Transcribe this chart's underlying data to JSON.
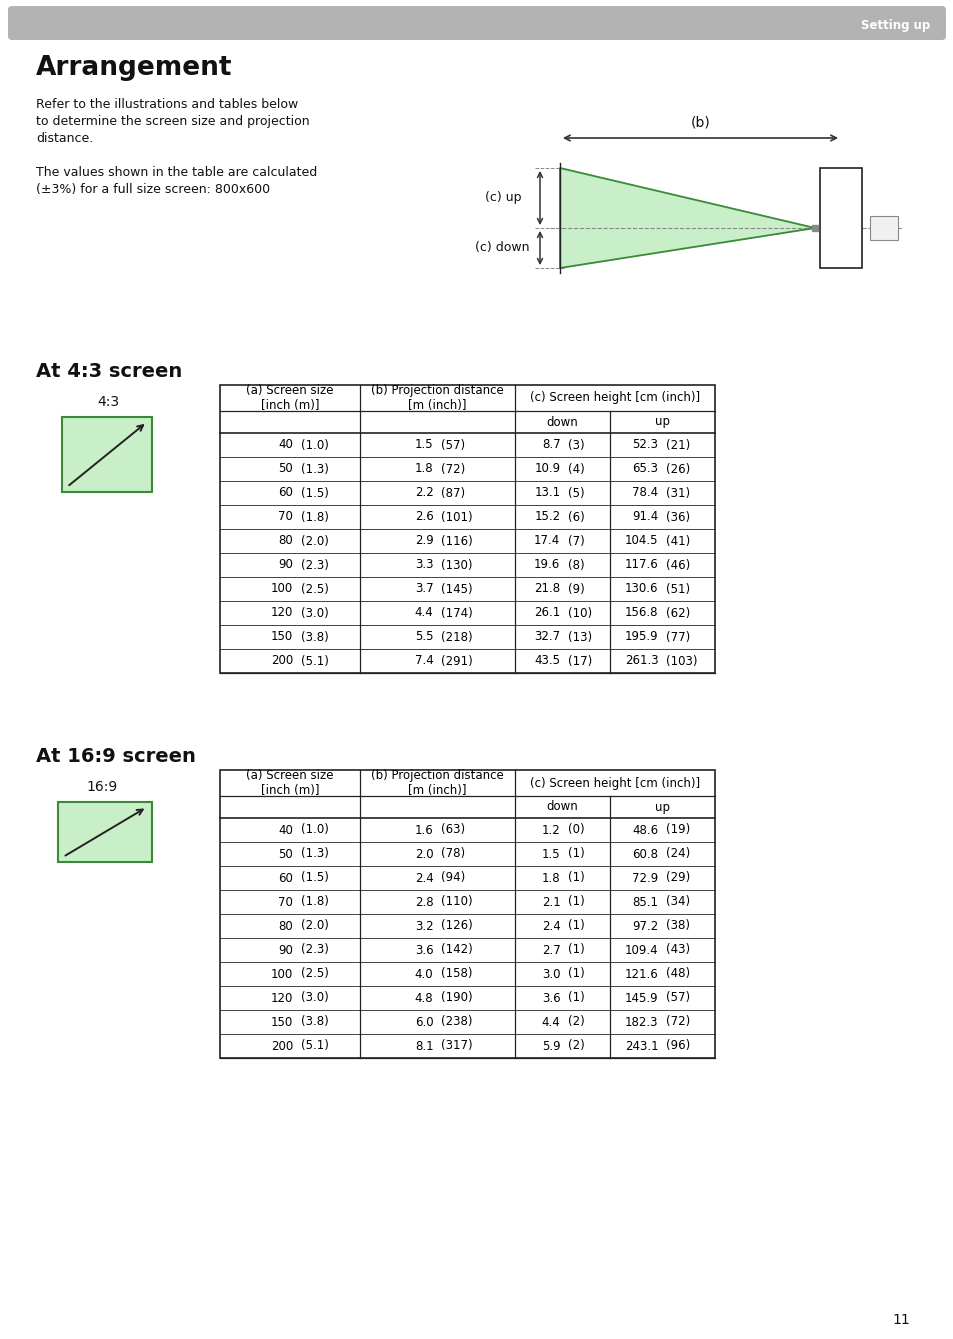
{
  "page_title": "Arrangement",
  "header_text": "Setting up",
  "body_text_line1": "Refer to the illustrations and tables below",
  "body_text_line2": "to determine the screen size and projection",
  "body_text_line3": "distance.",
  "body_text_line4": "The values shown in the table are calculated",
  "body_text_line5": "(±3%) for a full size screen: 800x600",
  "section1_title": "At 4:3 screen",
  "section2_title": "At 16:9 screen",
  "table1_data": [
    [
      "40",
      "(1.0)",
      "1.5",
      "(57)",
      "8.7",
      "(3)",
      "52.3",
      "(21)"
    ],
    [
      "50",
      "(1.3)",
      "1.8",
      "(72)",
      "10.9",
      "(4)",
      "65.3",
      "(26)"
    ],
    [
      "60",
      "(1.5)",
      "2.2",
      "(87)",
      "13.1",
      "(5)",
      "78.4",
      "(31)"
    ],
    [
      "70",
      "(1.8)",
      "2.6",
      "(101)",
      "15.2",
      "(6)",
      "91.4",
      "(36)"
    ],
    [
      "80",
      "(2.0)",
      "2.9",
      "(116)",
      "17.4",
      "(7)",
      "104.5",
      "(41)"
    ],
    [
      "90",
      "(2.3)",
      "3.3",
      "(130)",
      "19.6",
      "(8)",
      "117.6",
      "(46)"
    ],
    [
      "100",
      "(2.5)",
      "3.7",
      "(145)",
      "21.8",
      "(9)",
      "130.6",
      "(51)"
    ],
    [
      "120",
      "(3.0)",
      "4.4",
      "(174)",
      "26.1",
      "(10)",
      "156.8",
      "(62)"
    ],
    [
      "150",
      "(3.8)",
      "5.5",
      "(218)",
      "32.7",
      "(13)",
      "195.9",
      "(77)"
    ],
    [
      "200",
      "(5.1)",
      "7.4",
      "(291)",
      "43.5",
      "(17)",
      "261.3",
      "(103)"
    ]
  ],
  "table2_data": [
    [
      "40",
      "(1.0)",
      "1.6",
      "(63)",
      "1.2",
      "(0)",
      "48.6",
      "(19)"
    ],
    [
      "50",
      "(1.3)",
      "2.0",
      "(78)",
      "1.5",
      "(1)",
      "60.8",
      "(24)"
    ],
    [
      "60",
      "(1.5)",
      "2.4",
      "(94)",
      "1.8",
      "(1)",
      "72.9",
      "(29)"
    ],
    [
      "70",
      "(1.8)",
      "2.8",
      "(110)",
      "2.1",
      "(1)",
      "85.1",
      "(34)"
    ],
    [
      "80",
      "(2.0)",
      "3.2",
      "(126)",
      "2.4",
      "(1)",
      "97.2",
      "(38)"
    ],
    [
      "90",
      "(2.3)",
      "3.6",
      "(142)",
      "2.7",
      "(1)",
      "109.4",
      "(43)"
    ],
    [
      "100",
      "(2.5)",
      "4.0",
      "(158)",
      "3.0",
      "(1)",
      "121.6",
      "(48)"
    ],
    [
      "120",
      "(3.0)",
      "4.8",
      "(190)",
      "3.6",
      "(1)",
      "145.9",
      "(57)"
    ],
    [
      "150",
      "(3.8)",
      "6.0",
      "(238)",
      "4.4",
      "(2)",
      "182.3",
      "(72)"
    ],
    [
      "200",
      "(5.1)",
      "8.1",
      "(317)",
      "5.9",
      "(2)",
      "243.1",
      "(96)"
    ]
  ],
  "page_number": "11",
  "bg_color": "#ffffff",
  "header_bar_color": "#b3b3b3",
  "header_text_color": "#ffffff",
  "table_border_color": "#222222",
  "green_fill": "#c8efc8",
  "green_border": "#3a8a3a",
  "text_color": "#111111"
}
